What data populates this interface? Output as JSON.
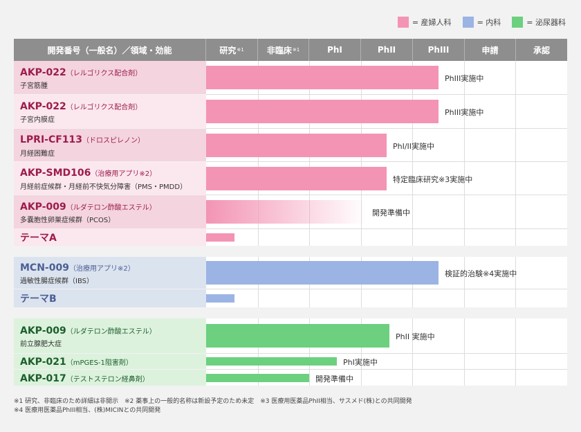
{
  "legend": [
    {
      "label": "= 産婦人科",
      "color": "#f394b5"
    },
    {
      "label": "= 内科",
      "color": "#9bb4e4"
    },
    {
      "label": "= 泌尿器科",
      "color": "#6cd07f"
    }
  ],
  "header": {
    "name_col": "開発番号（一般名）／領域・効能",
    "phases": [
      {
        "label": "研究",
        "note": "※1"
      },
      {
        "label": "非臨床",
        "note": "※1"
      },
      {
        "label": "PhI",
        "note": ""
      },
      {
        "label": "PhII",
        "note": ""
      },
      {
        "label": "PhIII",
        "note": ""
      },
      {
        "label": "申請",
        "note": ""
      },
      {
        "label": "承認",
        "note": ""
      }
    ]
  },
  "chart_data": {
    "type": "bar",
    "orientation": "horizontal",
    "stages": [
      "研究",
      "非臨床",
      "PhI",
      "PhII",
      "PhIII",
      "申請",
      "承認"
    ],
    "groups": [
      {
        "legend": "産婦人科",
        "color": "#f394b5",
        "items": [
          {
            "code": "AKP-022",
            "paren": "（レルゴリクス配合剤）",
            "indication": "子宮筋腫",
            "progress": 4.5,
            "status": "PhIII実施中",
            "fade": false
          },
          {
            "code": "AKP-022",
            "paren": "（レルゴリクス配合剤）",
            "indication": "子宮内膜症",
            "progress": 4.5,
            "status": "PhIII実施中",
            "fade": false
          },
          {
            "code": "LPRI-CF113",
            "paren": "（ドロスピレノン）",
            "indication": "月経困難症",
            "progress": 3.5,
            "status": "PhI/II実施中",
            "fade": false
          },
          {
            "code": "AKP-SMD106",
            "paren": "（治療用アプリ※2）",
            "indication": "月経前症候群・月経前不快気分障害（PMS・PMDD）",
            "progress": 3.5,
            "status": "特定臨床研究※3実施中",
            "fade": false
          },
          {
            "code": "AKP-009",
            "paren": "（ルダテロン酢酸エステル）",
            "indication": "多嚢胞性卵巣症候群（PCOS）",
            "progress": 3.1,
            "status": "開発準備中",
            "fade": true
          },
          {
            "code": "テーマA",
            "paren": "",
            "indication": "",
            "progress": 0.55,
            "status": "",
            "fade": false
          }
        ]
      },
      {
        "legend": "内科",
        "color": "#9bb4e4",
        "items": [
          {
            "code": "MCN-009",
            "paren": "（治療用アプリ※2）",
            "indication": "過敏性腸症候群（IBS）",
            "progress": 4.5,
            "status": "検証的治験※4実施中",
            "fade": false
          },
          {
            "code": "テーマB",
            "paren": "",
            "indication": "",
            "progress": 0.55,
            "status": "",
            "fade": false
          }
        ]
      },
      {
        "legend": "泌尿器科",
        "color": "#6cd07f",
        "items": [
          {
            "code": "AKP-009",
            "paren": "（ルダテロン酢酸エステル）",
            "indication": "前立腺肥大症",
            "progress": 3.55,
            "status": "PhII 実施中",
            "fade": false
          },
          {
            "code": "AKP-021",
            "paren": "（mPGES-1阻害剤）",
            "indication": "",
            "progress": 2.53,
            "status": "PhI実施中",
            "fade": false
          },
          {
            "code": "AKP-017",
            "paren": "（テストステロン経鼻剤）",
            "indication": "",
            "progress": 2.0,
            "status": "開発準備中",
            "fade": false
          }
        ]
      }
    ]
  },
  "footnotes": [
    "※1 研究、非臨床のため詳細は非開示　※2 薬事上の一般的名称は新設予定のため未定　※3 医療用医薬品PhII相当、サスメド(株)との共同開発",
    "※4 医療用医薬品PhIII相当、(株)MICINとの共同開発"
  ],
  "colors": {
    "header_bg": "#8e8e8e",
    "gyn_name_text": "#9c1c4c",
    "gyn_cell_dark": "#f4d4df",
    "gyn_cell_light": "#fbe7ee",
    "int_name_text": "#4b5f94",
    "int_cell": "#dbe3ef",
    "uro_name_text": "#1d5e2c",
    "uro_cell": "#dcf2dd"
  }
}
